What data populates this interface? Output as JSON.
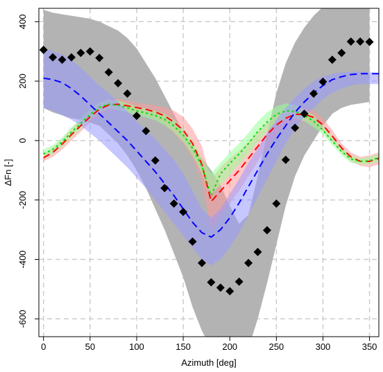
{
  "chart_data": {
    "type": "line",
    "title": "",
    "xlabel": "Azimuth [deg]",
    "ylabel": "ΔFn [-]",
    "xlim": [
      -5,
      360
    ],
    "ylim": [
      -660,
      445
    ],
    "x_ticks": [
      0,
      50,
      100,
      150,
      200,
      250,
      300,
      350
    ],
    "y_ticks": [
      -600,
      -400,
      -200,
      0,
      200,
      400
    ],
    "x_tick_labels": [
      "0",
      "50",
      "100",
      "150",
      "200",
      "250",
      "300",
      "350"
    ],
    "y_tick_labels": [
      "-600",
      "-400",
      "-200",
      "0",
      "200",
      "400"
    ],
    "grid": true,
    "legend": "none",
    "bands": [
      {
        "color": "#b3b3b3",
        "x": [
          0,
          10,
          20,
          30,
          40,
          50,
          60,
          70,
          80,
          90,
          100,
          110,
          120,
          130,
          140,
          150,
          160,
          170,
          180,
          190,
          200,
          210,
          220,
          230,
          240,
          250,
          260,
          270,
          280,
          290,
          300,
          310,
          320,
          330,
          340,
          350
        ],
        "upper": [
          440,
          430,
          425,
          420,
          415,
          410,
          400,
          385,
          370,
          345,
          310,
          260,
          210,
          150,
          90,
          30,
          -20,
          -60,
          -100,
          -150,
          -220,
          -280,
          -250,
          -120,
          20,
          160,
          260,
          330,
          380,
          420,
          450,
          470,
          480,
          480,
          470,
          460
        ],
        "lower": [
          110,
          95,
          85,
          75,
          70,
          60,
          50,
          20,
          -10,
          -50,
          -100,
          -160,
          -230,
          -300,
          -380,
          -460,
          -560,
          -640,
          -700,
          -720,
          -760,
          -760,
          -700,
          -600,
          -480,
          -350,
          -220,
          -120,
          -50,
          0,
          50,
          90,
          110,
          120,
          125,
          130
        ]
      },
      {
        "color": "#ff9999",
        "x": [
          0,
          10,
          20,
          30,
          40,
          50,
          60,
          70,
          80,
          90,
          100,
          110,
          120,
          130,
          140,
          150,
          160,
          170,
          180,
          190,
          200,
          210,
          220,
          230,
          240,
          250,
          260,
          270,
          280,
          290,
          300,
          310,
          320,
          330,
          340,
          350,
          360
        ],
        "upper": [
          -45,
          -25,
          5,
          40,
          70,
          100,
          125,
          140,
          140,
          135,
          128,
          122,
          118,
          112,
          100,
          80,
          40,
          -20,
          -130,
          -90,
          -60,
          -35,
          -5,
          30,
          60,
          85,
          100,
          112,
          112,
          100,
          75,
          35,
          -10,
          -40,
          -55,
          -50,
          -40
        ],
        "lower": [
          -70,
          -55,
          -30,
          0,
          30,
          60,
          85,
          100,
          105,
          100,
          95,
          88,
          75,
          55,
          25,
          -10,
          -60,
          -140,
          -300,
          -250,
          -210,
          -170,
          -120,
          -70,
          -20,
          20,
          50,
          65,
          65,
          55,
          30,
          -5,
          -40,
          -70,
          -85,
          -90,
          -80
        ]
      },
      {
        "color": "#99ff99",
        "x": [
          0,
          10,
          20,
          30,
          40,
          50,
          60,
          70,
          80,
          90,
          100,
          110,
          120,
          130,
          140,
          150,
          160,
          170,
          180,
          190,
          200,
          210,
          220,
          230,
          240,
          250,
          260,
          270,
          280,
          290,
          300,
          310,
          320,
          330,
          340,
          350,
          360
        ],
        "upper": [
          -30,
          -15,
          10,
          45,
          75,
          105,
          128,
          138,
          135,
          125,
          115,
          108,
          100,
          90,
          70,
          40,
          0,
          -60,
          -110,
          -75,
          -40,
          -10,
          25,
          65,
          95,
          115,
          125,
          120,
          105,
          85,
          50,
          10,
          -25,
          -50,
          -60,
          -55,
          -45
        ],
        "lower": [
          -60,
          -45,
          -20,
          10,
          40,
          70,
          95,
          105,
          103,
          95,
          85,
          78,
          68,
          52,
          28,
          -5,
          -50,
          -110,
          -180,
          -150,
          -115,
          -80,
          -45,
          -5,
          30,
          60,
          75,
          75,
          65,
          45,
          20,
          -15,
          -50,
          -75,
          -80,
          -80,
          -70
        ]
      },
      {
        "color": "#9999ff",
        "x": [
          0,
          10,
          20,
          30,
          40,
          50,
          60,
          70,
          80,
          90,
          100,
          110,
          120,
          130,
          140,
          150,
          160,
          170,
          180,
          190,
          200,
          210,
          220,
          230,
          240,
          250,
          260,
          270,
          280,
          290,
          300,
          310,
          320,
          330,
          340,
          350,
          360
        ],
        "upper": [
          310,
          300,
          290,
          270,
          245,
          215,
          185,
          160,
          130,
          100,
          65,
          35,
          5,
          -30,
          -65,
          -110,
          -170,
          -230,
          -260,
          -230,
          -180,
          -130,
          -75,
          -25,
          25,
          70,
          110,
          145,
          175,
          200,
          215,
          225,
          230,
          232,
          232,
          230,
          228
        ],
        "lower": [
          110,
          100,
          85,
          70,
          50,
          25,
          0,
          -30,
          -60,
          -90,
          -125,
          -160,
          -200,
          -240,
          -280,
          -320,
          -360,
          -400,
          -420,
          -400,
          -360,
          -310,
          -250,
          -190,
          -130,
          -70,
          -10,
          40,
          80,
          110,
          140,
          160,
          175,
          185,
          190,
          190,
          190
        ]
      }
    ],
    "series": [
      {
        "color": "#ff0000",
        "style": "dashed",
        "x": [
          0,
          10,
          20,
          30,
          40,
          50,
          60,
          70,
          80,
          90,
          100,
          110,
          120,
          130,
          140,
          150,
          160,
          170,
          180,
          190,
          200,
          210,
          220,
          230,
          240,
          250,
          260,
          270,
          280,
          290,
          300,
          310,
          320,
          330,
          340,
          350,
          360
        ],
        "values": [
          -58,
          -40,
          -12,
          20,
          50,
          80,
          105,
          120,
          122,
          117,
          111,
          105,
          96,
          83,
          62,
          35,
          -10,
          -80,
          -205,
          -170,
          -135,
          -100,
          -60,
          -20,
          20,
          52,
          75,
          88,
          88,
          78,
          52,
          15,
          -25,
          -55,
          -70,
          -70,
          -60
        ]
      },
      {
        "color": "#00dd00",
        "style": "dotted",
        "x": [
          0,
          10,
          20,
          30,
          40,
          50,
          60,
          70,
          80,
          90,
          100,
          110,
          120,
          130,
          140,
          150,
          160,
          170,
          180,
          190,
          200,
          210,
          220,
          230,
          240,
          250,
          260,
          270,
          280,
          290,
          300,
          310,
          320,
          330,
          340,
          350,
          360
        ],
        "values": [
          -45,
          -30,
          -5,
          28,
          58,
          88,
          112,
          122,
          119,
          110,
          100,
          93,
          84,
          71,
          49,
          18,
          -25,
          -85,
          -185,
          -112,
          -77,
          -45,
          -10,
          30,
          62,
          88,
          100,
          98,
          85,
          65,
          35,
          -2,
          -37,
          -62,
          -70,
          -68,
          -58
        ]
      },
      {
        "color": "#0000ff",
        "style": "dashed",
        "x": [
          0,
          10,
          20,
          30,
          40,
          50,
          60,
          70,
          80,
          90,
          100,
          110,
          120,
          130,
          140,
          150,
          160,
          170,
          180,
          190,
          200,
          210,
          220,
          230,
          240,
          250,
          260,
          270,
          280,
          290,
          300,
          310,
          320,
          330,
          340,
          350,
          360
        ],
        "values": [
          210,
          205,
          195,
          175,
          150,
          120,
          90,
          60,
          30,
          0,
          -35,
          -70,
          -105,
          -145,
          -185,
          -230,
          -275,
          -310,
          -325,
          -300,
          -260,
          -210,
          -155,
          -100,
          -45,
          5,
          50,
          95,
          130,
          160,
          185,
          205,
          215,
          222,
          225,
          225,
          225
        ]
      }
    ],
    "points": {
      "color": "#000000",
      "marker": "diamond",
      "x": [
        0,
        10,
        20,
        30,
        40,
        50,
        60,
        70,
        80,
        90,
        100,
        110,
        120,
        130,
        140,
        150,
        160,
        170,
        180,
        190,
        200,
        210,
        220,
        230,
        240,
        250,
        260,
        270,
        280,
        290,
        300,
        310,
        320,
        330,
        340,
        350
      ],
      "values": [
        305,
        280,
        272,
        280,
        295,
        300,
        278,
        230,
        193,
        158,
        83,
        32,
        -67,
        -160,
        -212,
        -240,
        -340,
        -412,
        -477,
        -495,
        -507,
        -475,
        -412,
        -375,
        -302,
        -212,
        -65,
        43,
        90,
        158,
        198,
        272,
        295,
        333,
        333,
        332
      ]
    }
  }
}
